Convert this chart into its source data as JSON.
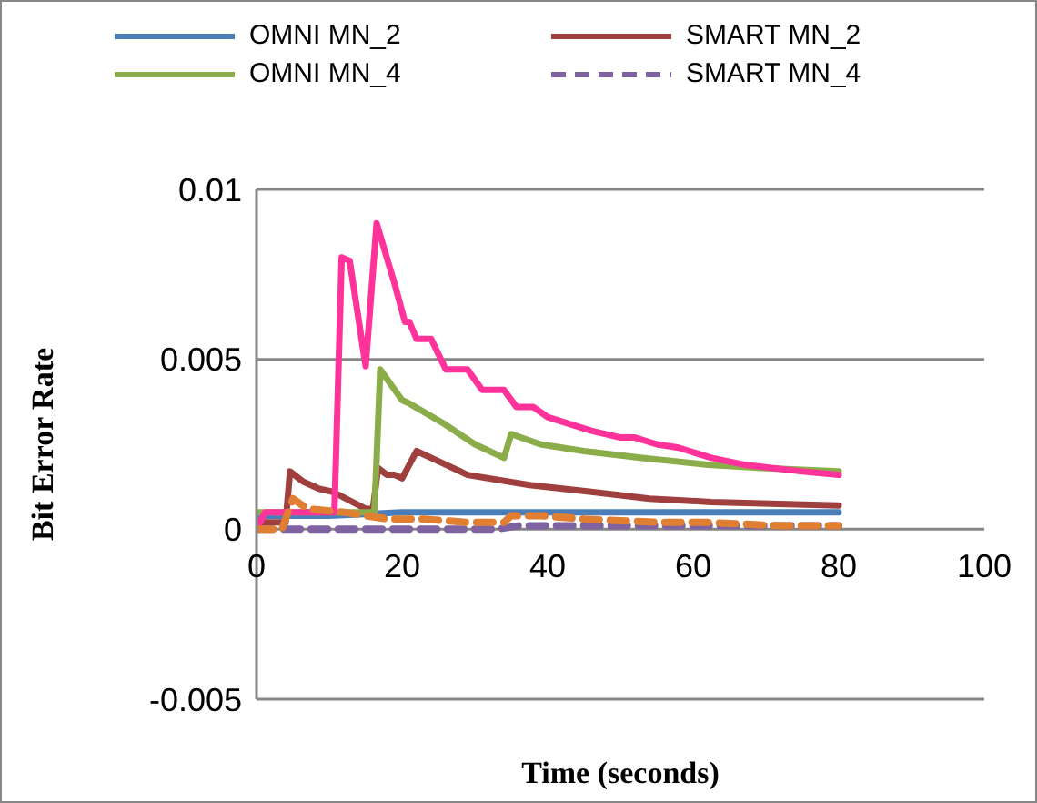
{
  "chart_data": {
    "type": "line",
    "xlabel": "Time (seconds)",
    "ylabel": "Bit Error Rate",
    "xlim": [
      0,
      100
    ],
    "xticks": [
      0,
      20,
      40,
      60,
      80,
      100
    ],
    "ylim": [
      -0.005,
      0.01
    ],
    "yticks": [
      -0.005,
      0,
      0.005,
      0.01
    ],
    "grid": "y",
    "legend": "top",
    "series": [
      {
        "name": "OMNI MN_2",
        "color": "#4a7ebb",
        "x": [
          0,
          10,
          20,
          40,
          60,
          80
        ],
        "values": [
          0.0004,
          0.0004,
          0.0005,
          0.0005,
          0.0005,
          0.0005
        ]
      },
      {
        "name": "SMART MN_2",
        "color": "#a0403e",
        "x": [
          0,
          4,
          4.6,
          6.4,
          8.5,
          10.5,
          15,
          16,
          16.7,
          17.9,
          19,
          20,
          22,
          25,
          29,
          37.5,
          46,
          54,
          62.5,
          80
        ],
        "values": [
          0.0002,
          0.0002,
          0.0017,
          0.0014,
          0.0012,
          0.0011,
          0.0006,
          0.0006,
          0.0018,
          0.0016,
          0.0016,
          0.0015,
          0.0023,
          0.002,
          0.0016,
          0.0013,
          0.0011,
          0.0009,
          0.0008,
          0.0007
        ]
      },
      {
        "name": "OMNI MN_4",
        "color": "#8aad4a",
        "x": [
          0,
          16.2,
          17,
          20,
          21,
          25.8,
          30,
          34,
          35,
          39,
          45,
          53,
          62,
          70,
          80
        ],
        "values": [
          0.0005,
          0.0005,
          0.0047,
          0.0038,
          0.0037,
          0.0031,
          0.0025,
          0.0021,
          0.0028,
          0.0025,
          0.0023,
          0.0021,
          0.0019,
          0.0018,
          0.0017
        ]
      },
      {
        "name": "SMART MN_4",
        "color": "#7f62a0",
        "line_style": "dashed",
        "x": [
          0,
          20,
          33,
          36,
          40,
          50,
          80
        ],
        "values": [
          0,
          0,
          0,
          0.0001,
          0.0001,
          0.0001,
          0.0001
        ]
      },
      {
        "color": "#ff3399",
        "x": [
          0,
          1.2,
          10.7,
          11.7,
          12.8,
          15,
          16.5,
          19,
          20.4,
          21,
          22,
          24,
          26,
          29,
          31,
          34,
          35.7,
          38,
          40,
          43,
          46,
          50,
          52,
          55,
          58,
          62.5,
          67,
          71,
          75,
          80
        ],
        "values": [
          0,
          0.0005,
          0.0005,
          0.008,
          0.0079,
          0.0048,
          0.009,
          0.0072,
          0.0061,
          0.0061,
          0.0056,
          0.0056,
          0.0047,
          0.0047,
          0.0041,
          0.0041,
          0.0036,
          0.0036,
          0.0033,
          0.0031,
          0.0029,
          0.0027,
          0.0027,
          0.0025,
          0.0024,
          0.0021,
          0.0019,
          0.0018,
          0.0017,
          0.0016
        ]
      },
      {
        "color": "#e07e32",
        "line_style": "dashed",
        "x": [
          0,
          3.5,
          5,
          7,
          12,
          18,
          23,
          29,
          34,
          35,
          39,
          45,
          55.5,
          62,
          72,
          80
        ],
        "values": [
          0,
          0,
          0.0009,
          0.0006,
          0.0005,
          0.0003,
          0.0003,
          0.0002,
          0.0002,
          0.0004,
          0.0004,
          0.0003,
          0.0002,
          0.0002,
          0.0001,
          0.0001
        ]
      }
    ]
  }
}
